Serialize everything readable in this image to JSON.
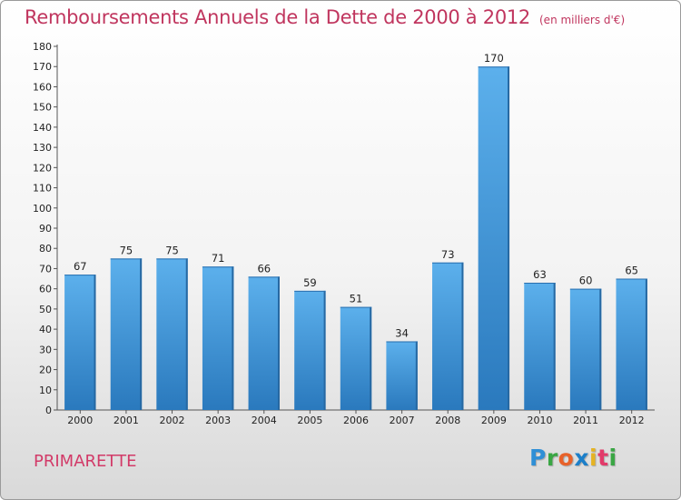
{
  "chart_data": {
    "type": "bar",
    "title": "Remboursements Annuels de la Dette de 2000 à 2012",
    "subtitle": "(en milliers d'€)",
    "categories": [
      "2000",
      "2001",
      "2002",
      "2003",
      "2004",
      "2005",
      "2006",
      "2007",
      "2008",
      "2009",
      "2010",
      "2011",
      "2012"
    ],
    "values": [
      67,
      75,
      75,
      71,
      66,
      59,
      51,
      34,
      73,
      170,
      63,
      60,
      65
    ],
    "ylim": [
      0,
      180
    ],
    "ytick_step": 10,
    "grid": false,
    "bar_color": "#4a9fdf"
  },
  "footer": {
    "town": "PRIMARETTE",
    "logo": [
      "P",
      "r",
      "o",
      "x",
      "i",
      "t",
      "i"
    ],
    "logo_colors": [
      "#2f8fd6",
      "#3aa644",
      "#e8622a",
      "#1c7fc9",
      "#e5b323",
      "#e23b6a",
      "#3aa644"
    ]
  }
}
